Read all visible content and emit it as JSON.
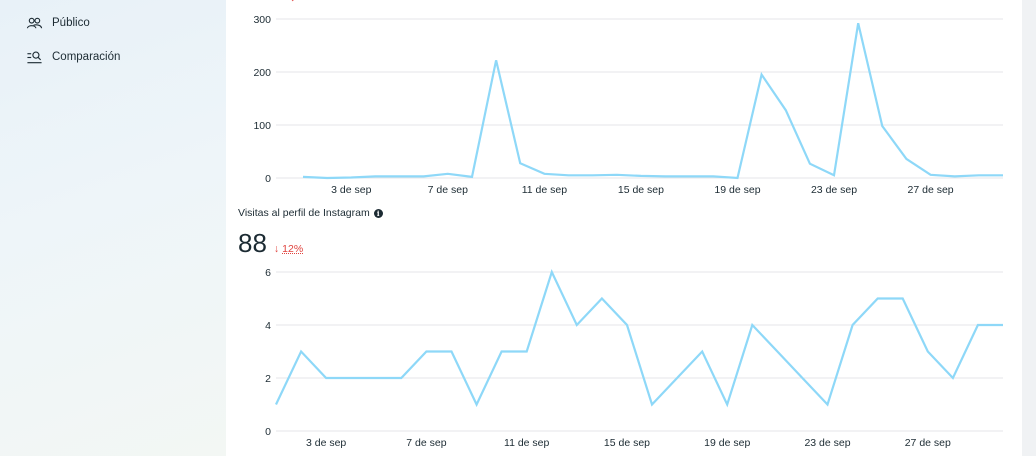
{
  "sidebar": {
    "items": [
      {
        "label": "Público",
        "icon": "people-icon"
      },
      {
        "label": "Comparación",
        "icon": "compare-search-icon"
      }
    ]
  },
  "colors": {
    "line": "#8ed8f8",
    "grid": "#e4e6e8",
    "negative": "#e0433e",
    "text": "#1c2b33"
  },
  "top_metric": {
    "delta_arrow": "↓"
  },
  "bottom_metric": {
    "label": "Visitas al perfil de Instagram",
    "info_icon": "i",
    "value": "88",
    "delta_arrow": "↓",
    "delta_pct": "12%"
  },
  "chart_data": [
    {
      "type": "line",
      "x": [
        "1 sep",
        "2 sep",
        "3 sep",
        "4 sep",
        "5 sep",
        "6 sep",
        "7 sep",
        "8 sep",
        "9 sep",
        "10 sep",
        "11 sep",
        "12 sep",
        "13 sep",
        "14 sep",
        "15 sep",
        "16 sep",
        "17 sep",
        "18 sep",
        "19 sep",
        "20 sep",
        "21 sep",
        "22 sep",
        "23 sep",
        "24 sep",
        "25 sep",
        "26 sep",
        "27 sep",
        "28 sep",
        "29 sep",
        "30 sep"
      ],
      "values": [
        2,
        0,
        1,
        3,
        3,
        3,
        8,
        2,
        222,
        28,
        8,
        5,
        5,
        6,
        4,
        3,
        3,
        3,
        0,
        195,
        128,
        27,
        5,
        292,
        98,
        36,
        6,
        3,
        5,
        5
      ],
      "xticks": [
        "3 de sep",
        "7 de sep",
        "11 de sep",
        "15 de sep",
        "19 de sep",
        "23 de sep",
        "27 de sep"
      ],
      "yticks": [
        "0",
        "100",
        "200",
        "300"
      ],
      "ylim": [
        0,
        300
      ],
      "grid": true
    },
    {
      "type": "line",
      "x": [
        "1 sep",
        "2 sep",
        "3 sep",
        "4 sep",
        "5 sep",
        "6 sep",
        "7 sep",
        "8 sep",
        "9 sep",
        "10 sep",
        "11 sep",
        "12 sep",
        "13 sep",
        "14 sep",
        "15 sep",
        "16 sep",
        "17 sep",
        "18 sep",
        "19 sep",
        "20 sep",
        "21 sep",
        "22 sep",
        "23 sep",
        "24 sep",
        "25 sep",
        "26 sep",
        "27 sep",
        "28 sep",
        "29 sep",
        "30 sep"
      ],
      "values": [
        1,
        3,
        2,
        2,
        2,
        2,
        3,
        3,
        1,
        3,
        3,
        6,
        4,
        5,
        4,
        1,
        2,
        3,
        1,
        4,
        3,
        2,
        1,
        4,
        5,
        5,
        3,
        2,
        4,
        4
      ],
      "xticks": [
        "3 de sep",
        "7 de sep",
        "11 de sep",
        "15 de sep",
        "19 de sep",
        "23 de sep",
        "27 de sep"
      ],
      "yticks": [
        "0",
        "2",
        "4",
        "6"
      ],
      "ylim": [
        0,
        6
      ],
      "grid": true
    }
  ]
}
